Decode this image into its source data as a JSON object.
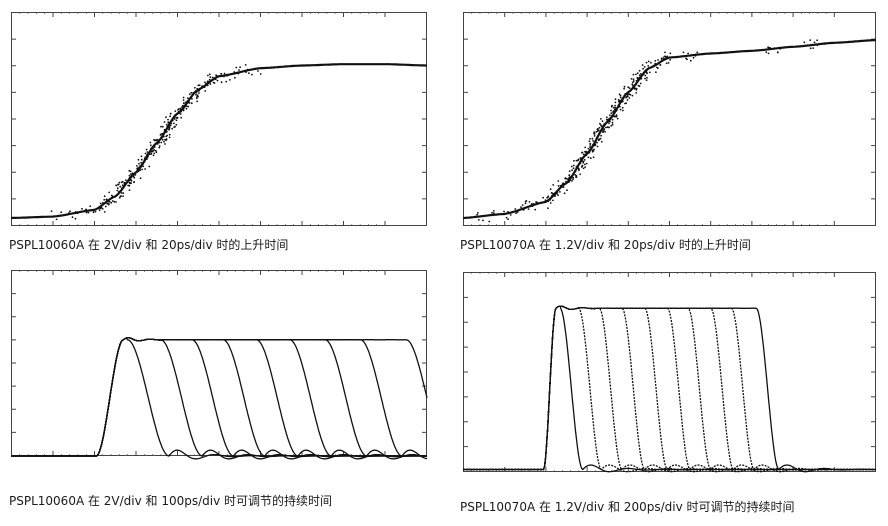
{
  "colors": {
    "trace": "#111111",
    "frame": "#444444",
    "background": "#ffffff"
  },
  "chart_data": [
    {
      "type": "line",
      "title": "PSPL10060A 在 2V/div 和 20ps/div 时的上升时间",
      "xlabel": "",
      "ylabel": "",
      "grid": false,
      "divisions": {
        "x": 10,
        "y": 8
      },
      "series": [
        {
          "x": [
            0,
            1,
            2,
            2.5,
            3,
            3.5,
            4,
            4.5,
            5,
            6,
            7,
            8,
            9,
            10
          ],
          "y": [
            0.3,
            0.35,
            0.6,
            1.1,
            2.0,
            3.1,
            4.2,
            5.1,
            5.6,
            5.9,
            6.0,
            6.05,
            6.05,
            6.0
          ]
        }
      ]
    },
    {
      "type": "line",
      "title": "PSPL10070A 在 1.2V/div 和 20ps/div 时的上升时间",
      "xlabel": "",
      "ylabel": "",
      "grid": false,
      "divisions": {
        "x": 10,
        "y": 8
      },
      "series": [
        {
          "x": [
            0,
            1,
            2,
            2.5,
            3,
            3.5,
            4,
            4.5,
            5,
            6,
            7,
            8,
            9,
            10
          ],
          "y": [
            0.3,
            0.45,
            0.9,
            1.6,
            2.7,
            3.9,
            5.0,
            5.9,
            6.3,
            6.45,
            6.55,
            6.7,
            6.85,
            6.95
          ]
        }
      ]
    },
    {
      "type": "line",
      "title": "PSPL10060A 在 2V/div 和 100ps/div 时可调节的持续时间",
      "xlabel": "",
      "ylabel": "",
      "grid": false,
      "divisions": {
        "x": 10,
        "y": 8
      },
      "rise_start": 2.05,
      "rise_end": 2.7,
      "baseline": 0.0,
      "top": 5.0,
      "series": [
        {
          "fall_start": 2.8
        },
        {
          "fall_start": 3.6
        },
        {
          "fall_start": 4.35
        },
        {
          "fall_start": 5.1
        },
        {
          "fall_start": 5.9
        },
        {
          "fall_start": 6.7
        },
        {
          "fall_start": 7.55
        },
        {
          "fall_start": 8.4
        },
        {
          "fall_start": 9.5
        }
      ]
    },
    {
      "type": "line",
      "title": "PSPL10070A 在 1.2V/div 和 200ps/div 时可调节的持续时间",
      "xlabel": "",
      "ylabel": "",
      "grid": false,
      "divisions": {
        "x": 10,
        "y": 8
      },
      "rise_start": 1.95,
      "rise_end": 2.25,
      "baseline": 0.1,
      "top": 6.55,
      "series": [
        {
          "fall_start": 2.35
        },
        {
          "fall_start": 2.8
        },
        {
          "fall_start": 3.3
        },
        {
          "fall_start": 3.85
        },
        {
          "fall_start": 4.4
        },
        {
          "fall_start": 4.95
        },
        {
          "fall_start": 5.45
        },
        {
          "fall_start": 6.0
        },
        {
          "fall_start": 6.5
        },
        {
          "fall_start": 7.1
        }
      ]
    }
  ]
}
